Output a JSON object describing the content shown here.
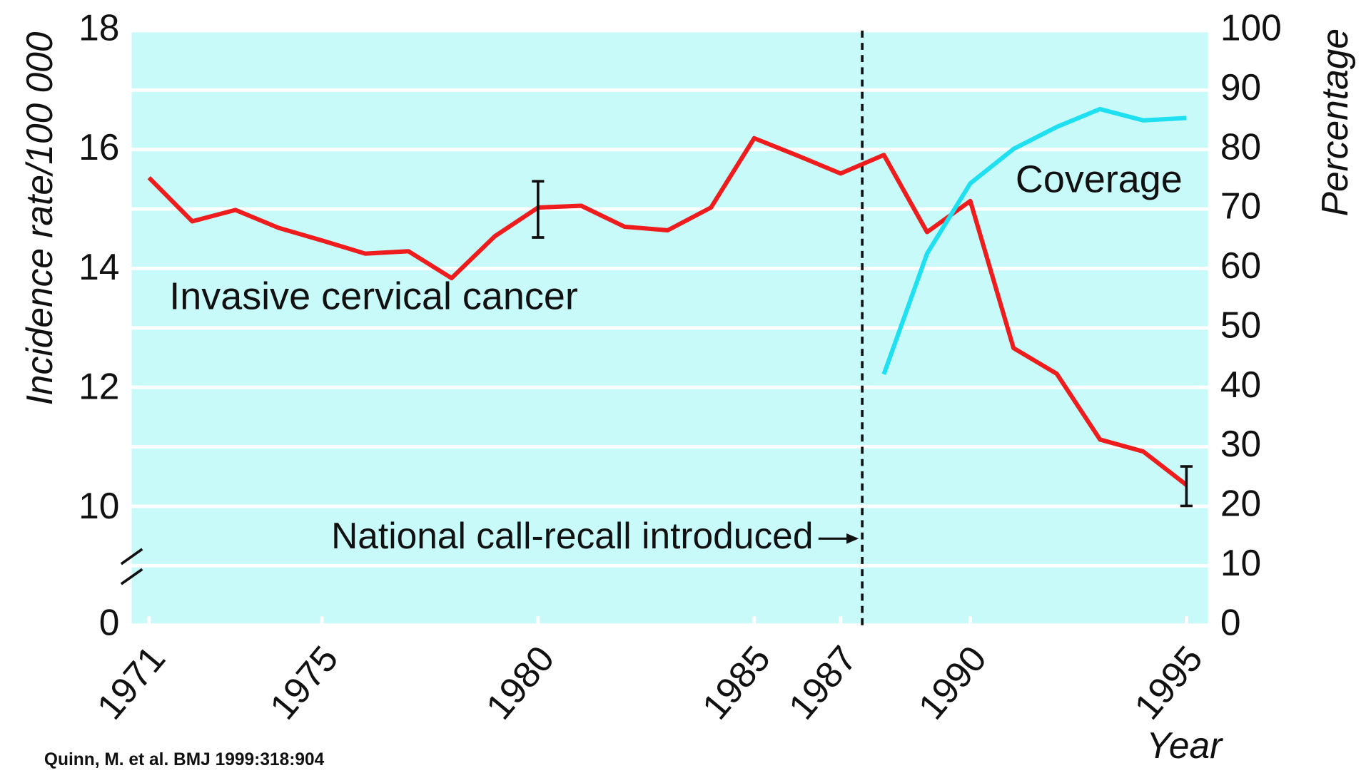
{
  "chart_data": {
    "type": "line",
    "y_label": "Incidence rate/100 000",
    "y2_label": "Percentage",
    "x_label": "Year",
    "source": "Quinn, M. et al. BMJ 1999:318:904",
    "x": [
      1971,
      1972,
      1973,
      1974,
      1975,
      1976,
      1977,
      1978,
      1979,
      1980,
      1981,
      1982,
      1983,
      1984,
      1985,
      1986,
      1987,
      1988,
      1989,
      1990,
      1991,
      1992,
      1993,
      1994,
      1995
    ],
    "series": [
      {
        "name": "Invasive cervical cancer",
        "color": "#ee1c1c",
        "values": [
          15.54,
          14.81,
          15.0,
          14.7,
          14.49,
          14.27,
          14.31,
          13.86,
          14.56,
          15.04,
          15.07,
          14.72,
          14.66,
          15.04,
          16.2,
          15.91,
          15.61,
          15.92,
          14.63,
          15.15,
          12.69,
          12.26,
          11.16,
          10.96,
          10.4
        ]
      },
      {
        "name": "Coverage",
        "color": "#1ee0f0",
        "axis": "y2",
        "values": [
          null,
          null,
          null,
          null,
          null,
          null,
          null,
          null,
          null,
          null,
          null,
          null,
          null,
          null,
          null,
          null,
          null,
          42.2,
          62.5,
          74.3,
          80.1,
          83.8,
          86.8,
          84.9,
          85.3
        ]
      }
    ],
    "error_bars": [
      {
        "x": 1980,
        "low": 14.54,
        "high": 15.48
      },
      {
        "x": 1995,
        "low": 10.05,
        "high": 10.71
      }
    ],
    "vline": {
      "x": 1987.5,
      "label": "National call-recall introduced"
    },
    "xlim": [
      1970.6,
      1995.5
    ],
    "xticks": [
      1971,
      1975,
      1980,
      1985,
      1987,
      1990,
      1995
    ],
    "ylim": [
      0,
      18
    ],
    "yticks": [
      0,
      10,
      12,
      14,
      16,
      18
    ],
    "axis_break": true,
    "y2lim": [
      0,
      100
    ],
    "y2ticks": [
      0,
      10,
      20,
      30,
      40,
      50,
      60,
      70,
      80,
      90,
      100
    ],
    "grid": true,
    "background": "#c8fafa"
  }
}
